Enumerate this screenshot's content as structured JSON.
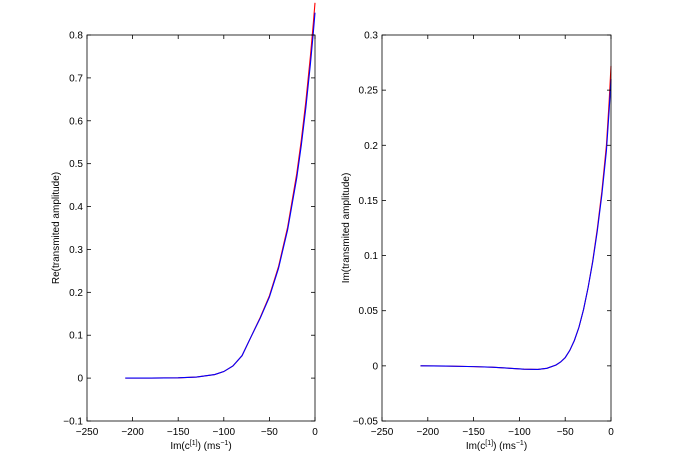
{
  "chart_data": [
    {
      "type": "line",
      "xlabel": "Im(c^{[1]}) (ms^{-1})",
      "xlabel_parts": {
        "main": "Im(c",
        "sup1": "[1]",
        "mid": ") (ms",
        "sup2": "−1",
        "end": ")"
      },
      "ylabel": "Re(transmited amplitude)",
      "xlim": [
        -250,
        0
      ],
      "ylim": [
        -0.1,
        0.8
      ],
      "xticks": [
        -250,
        -200,
        -150,
        -100,
        -50,
        0
      ],
      "xtick_labels": [
        "−250",
        "−200",
        "−150",
        "−100",
        "−50",
        "0"
      ],
      "yticks": [
        -0.1,
        0,
        0.1,
        0.2,
        0.3,
        0.4,
        0.5,
        0.6,
        0.7,
        0.8
      ],
      "ytick_labels": [
        "−0.1",
        "0",
        "0.1",
        "0.2",
        "0.3",
        "0.4",
        "0.5",
        "0.6",
        "0.7",
        "0.8"
      ],
      "grid": false,
      "series": [
        {
          "color": "#ff0000",
          "x": [
            -208,
            -180,
            -150,
            -130,
            -110,
            -100,
            -90,
            -80,
            -70,
            -60,
            -50,
            -40,
            -30,
            -20,
            -15,
            -10,
            -5,
            -2,
            0
          ],
          "y": [
            0.0,
            0.0,
            0.0007,
            0.0024,
            0.0083,
            0.0153,
            0.0283,
            0.0524,
            0.0969,
            0.1417,
            0.1919,
            0.26,
            0.3521,
            0.4768,
            0.5549,
            0.6458,
            0.7515,
            0.8234,
            0.875
          ]
        },
        {
          "color": "#0000ff",
          "x": [
            -208,
            -180,
            -150,
            -130,
            -110,
            -100,
            -90,
            -80,
            -70,
            -60,
            -50,
            -40,
            -30,
            -20,
            -15,
            -10,
            -5,
            -2,
            0
          ],
          "y": [
            0.0,
            0.0,
            0.0007,
            0.0024,
            0.0083,
            0.0153,
            0.0283,
            0.0524,
            0.0969,
            0.14,
            0.189,
            0.256,
            0.346,
            0.467,
            0.543,
            0.631,
            0.733,
            0.802,
            0.852
          ]
        }
      ]
    },
    {
      "type": "line",
      "xlabel": "Im(c^{[1]}) (ms^{-1})",
      "xlabel_parts": {
        "main": "Im(c",
        "sup1": "[1]",
        "mid": ") (ms",
        "sup2": "−1",
        "end": ")"
      },
      "ylabel": "Im(transmited amplitude)",
      "xlim": [
        -250,
        0
      ],
      "ylim": [
        -0.05,
        0.3
      ],
      "xticks": [
        -250,
        -200,
        -150,
        -100,
        -50,
        0
      ],
      "xtick_labels": [
        "−250",
        "−200",
        "−150",
        "−100",
        "−50",
        "0"
      ],
      "yticks": [
        -0.05,
        0,
        0.05,
        0.1,
        0.15,
        0.2,
        0.25,
        0.3
      ],
      "ytick_labels": [
        "−0.05",
        "0",
        "0.05",
        "0.1",
        "0.15",
        "0.2",
        "0.25",
        "0.3"
      ],
      "grid": false,
      "series": [
        {
          "color": "#ff0000",
          "x": [
            -208,
            -180,
            -150,
            -130,
            -110,
            -95,
            -80,
            -70,
            -60,
            -55,
            -50,
            -45,
            -40,
            -35,
            -30,
            -25,
            -20,
            -15,
            -10,
            -5,
            -2,
            0
          ],
          "y": [
            0.0,
            -0.0002,
            -0.0007,
            -0.0012,
            -0.0022,
            -0.003,
            -0.0032,
            -0.0022,
            0.0008,
            0.0035,
            0.0075,
            0.014,
            0.023,
            0.035,
            0.051,
            0.071,
            0.095,
            0.124,
            0.158,
            0.2,
            0.24,
            0.272
          ]
        },
        {
          "color": "#0000ff",
          "x": [
            -208,
            -180,
            -150,
            -130,
            -110,
            -95,
            -80,
            -70,
            -60,
            -55,
            -50,
            -45,
            -40,
            -35,
            -30,
            -25,
            -20,
            -15,
            -10,
            -5,
            -2,
            0
          ],
          "y": [
            0.0,
            -0.0002,
            -0.0007,
            -0.0012,
            -0.0022,
            -0.003,
            -0.0032,
            -0.0022,
            0.0008,
            0.0035,
            0.0075,
            0.014,
            0.023,
            0.035,
            0.051,
            0.071,
            0.094,
            0.122,
            0.155,
            0.195,
            0.232,
            0.26
          ]
        }
      ]
    }
  ]
}
